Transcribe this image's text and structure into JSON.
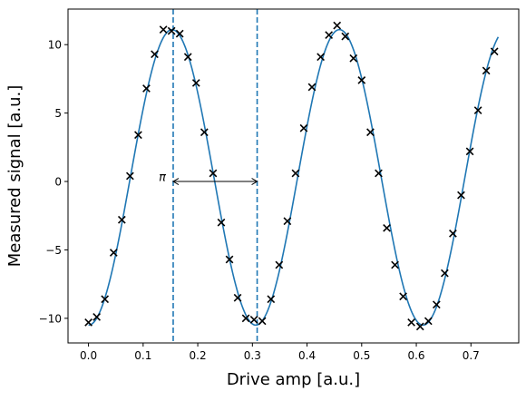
{
  "chart_data": {
    "type": "scatter",
    "xlabel": "Drive amp [a.u.]",
    "ylabel": "Measured signal [a.u.]",
    "xlim": [
      -0.0375,
      0.7875
    ],
    "ylim": [
      -11.8,
      12.6
    ],
    "x_ticks": [
      0.0,
      0.1,
      0.2,
      0.3,
      0.4,
      0.5,
      0.6,
      0.7
    ],
    "x_tick_labels": [
      "0.0",
      "0.1",
      "0.2",
      "0.3",
      "0.4",
      "0.5",
      "0.6",
      "0.7"
    ],
    "y_ticks": [
      -10,
      -5,
      0,
      5,
      10
    ],
    "y_tick_labels": [
      "−10",
      "−5",
      "0",
      "5",
      "10"
    ],
    "grid": false,
    "colors": {
      "fit_line": "#1f77b4",
      "markers": "#000000",
      "vlines": "#1f77b4",
      "arrow": "#000000"
    },
    "measured": {
      "marker": "x",
      "x": [
        0.0,
        0.015,
        0.03,
        0.046,
        0.061,
        0.076,
        0.091,
        0.106,
        0.121,
        0.137,
        0.152,
        0.167,
        0.182,
        0.197,
        0.212,
        0.228,
        0.243,
        0.258,
        0.273,
        0.288,
        0.303,
        0.318,
        0.334,
        0.349,
        0.364,
        0.379,
        0.394,
        0.409,
        0.425,
        0.44,
        0.455,
        0.47,
        0.485,
        0.5,
        0.516,
        0.531,
        0.546,
        0.561,
        0.576,
        0.591,
        0.607,
        0.622,
        0.637,
        0.652,
        0.667,
        0.682,
        0.698,
        0.713,
        0.728,
        0.743
      ],
      "y": [
        -10.3,
        -9.9,
        -8.6,
        -5.2,
        -2.8,
        0.4,
        3.4,
        6.8,
        9.3,
        11.1,
        11.0,
        10.8,
        9.1,
        7.2,
        3.6,
        0.6,
        -3.0,
        -5.7,
        -8.5,
        -10.0,
        -10.1,
        -10.2,
        -8.6,
        -6.1,
        -2.9,
        0.6,
        3.9,
        6.9,
        9.1,
        10.7,
        11.4,
        10.6,
        9.0,
        7.4,
        3.6,
        0.6,
        -3.4,
        -6.1,
        -8.4,
        -10.3,
        -10.6,
        -10.2,
        -9.0,
        -6.7,
        -3.8,
        -1.0,
        2.2,
        5.2,
        8.1,
        9.5
      ]
    },
    "fit": {
      "amplitude": 10.8,
      "period": 0.3062,
      "phase": 3.14159,
      "offset": 0.3,
      "x_range": [
        0.0,
        0.75
      ]
    },
    "vlines": [
      0.155,
      0.3087
    ],
    "annotation": {
      "text": "π",
      "arrow_from": 0.155,
      "arrow_to": 0.3087,
      "y": 0
    }
  }
}
